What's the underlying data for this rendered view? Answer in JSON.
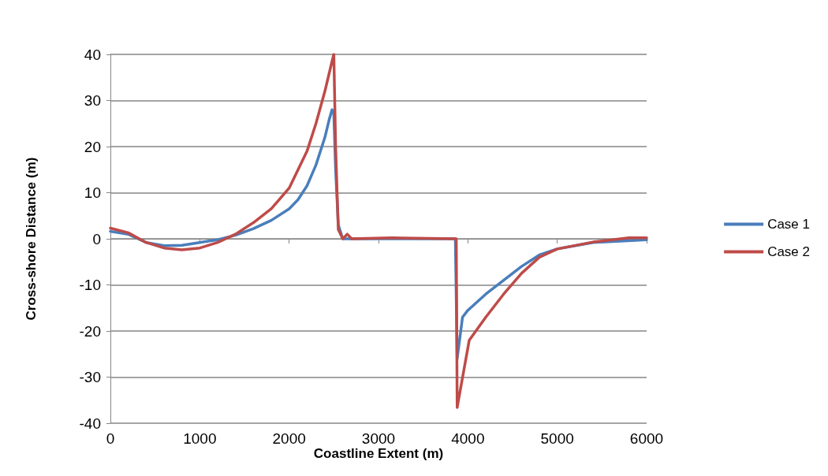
{
  "chart_data": {
    "type": "line",
    "xlabel": "Coastline Extent (m)",
    "ylabel": "Cross-shore Distance (m)",
    "xlim": [
      0,
      6000
    ],
    "xticks": [
      0,
      1000,
      2000,
      3000,
      4000,
      5000,
      6000
    ],
    "ylim": [
      -40,
      40
    ],
    "yticks": [
      -40,
      -30,
      -20,
      -10,
      0,
      10,
      20,
      30,
      40
    ],
    "grid": "y",
    "legend": "right",
    "marker": "none",
    "line_style": "solid",
    "series": [
      {
        "name": "Case 1",
        "color": "#4a7ebb",
        "x": [
          0,
          200,
          400,
          600,
          800,
          1000,
          1200,
          1400,
          1600,
          1800,
          2000,
          2100,
          2200,
          2300,
          2400,
          2450,
          2480,
          2500,
          2520,
          2550,
          2600,
          3000,
          3860,
          3880,
          3940,
          4000,
          4200,
          4400,
          4600,
          4800,
          5000,
          5400,
          6000
        ],
        "values": [
          1.6,
          1.0,
          -0.8,
          -1.5,
          -1.4,
          -0.8,
          -0.2,
          0.8,
          2.2,
          4,
          6.5,
          8.5,
          11.5,
          16,
          22,
          26,
          28,
          27,
          15,
          3,
          0,
          0,
          0,
          -26,
          -17,
          -15.5,
          -12,
          -9,
          -6,
          -3.5,
          -2.2,
          -0.8,
          -0.2
        ]
      },
      {
        "name": "Case 2",
        "color": "#be4b48",
        "x": [
          0,
          200,
          400,
          600,
          800,
          1000,
          1200,
          1400,
          1600,
          1800,
          2000,
          2200,
          2300,
          2400,
          2480,
          2500,
          2520,
          2550,
          2600,
          2650,
          2700,
          3150,
          3870,
          3880,
          4015,
          4200,
          4400,
          4600,
          4800,
          5000,
          5400,
          5800,
          6000
        ],
        "values": [
          2.3,
          1.3,
          -0.8,
          -2,
          -2.4,
          -2,
          -0.8,
          1,
          3.5,
          6.5,
          11,
          19,
          25,
          32,
          38.5,
          40,
          20,
          2,
          0,
          1,
          0,
          0.2,
          0,
          -36.6,
          -22,
          -17,
          -12,
          -7.5,
          -4,
          -2.2,
          -0.7,
          0.2,
          0.2
        ]
      }
    ]
  }
}
